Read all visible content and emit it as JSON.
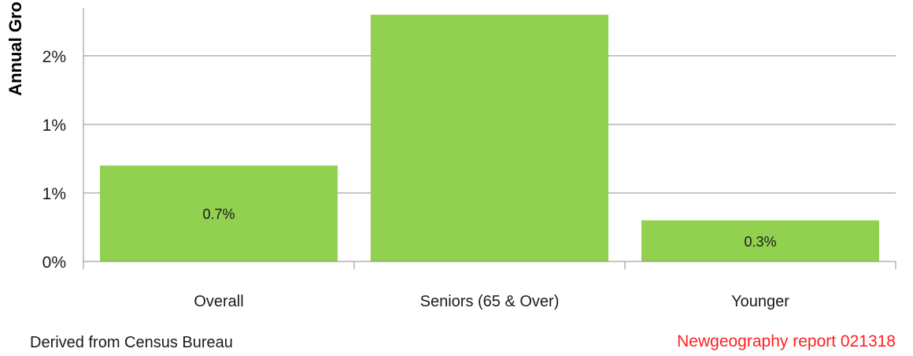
{
  "chart_data": {
    "type": "bar",
    "ylabel": "Annual Gro",
    "categories": [
      "Overall",
      "Seniors (65 & Over)",
      "Younger"
    ],
    "series": [
      {
        "values": [
          0.7,
          1.8,
          0.3
        ],
        "data_labels": [
          "0.7%",
          "",
          "0.3%"
        ]
      }
    ],
    "yticks": [
      {
        "value": 0,
        "label": "0%"
      },
      {
        "value": 0.5,
        "label": "1%"
      },
      {
        "value": 1.0,
        "label": "1%"
      },
      {
        "value": 1.5,
        "label": "2%"
      }
    ],
    "ylim": [
      0,
      1.85
    ],
    "grid": true,
    "bar_color": "#92d050"
  },
  "footer": {
    "source": "Derived from Census Bureau",
    "credit": "Newgeography report 021318",
    "credit_color": "#ff2020"
  }
}
